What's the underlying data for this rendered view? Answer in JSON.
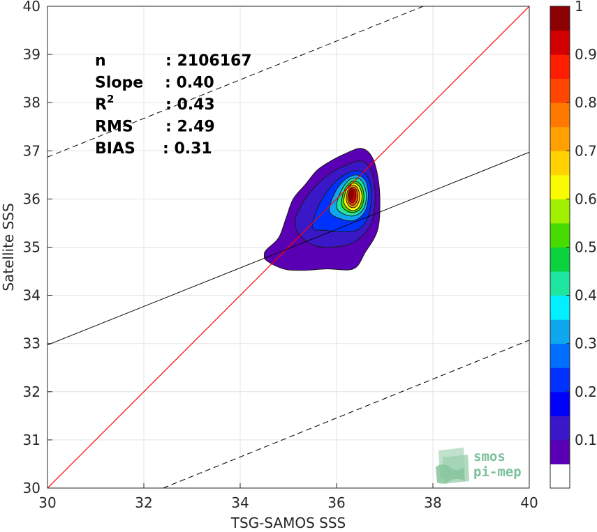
{
  "chart_data": {
    "type": "scatter",
    "subtype": "density-contour",
    "xlabel": "TSG-SAMOS SSS",
    "ylabel": "Satellite SSS",
    "xlim": [
      30,
      40
    ],
    "ylim": [
      30,
      40
    ],
    "x_ticks": [
      "30",
      "32",
      "34",
      "36",
      "38",
      "40"
    ],
    "y_ticks": [
      "30",
      "31",
      "32",
      "33",
      "34",
      "35",
      "36",
      "37",
      "38",
      "39",
      "40"
    ],
    "grid": true,
    "stats": [
      {
        "key": "n",
        "value": ": 2106167"
      },
      {
        "key": "Slope",
        "value": ": 0.40"
      },
      {
        "key": "R",
        "sup": "2",
        "value": ": 0.43"
      },
      {
        "key": "RMS",
        "value": ": 2.49"
      },
      {
        "key": "BIAS",
        "value": ": 0.31"
      }
    ],
    "lines": {
      "identity": {
        "slope": 1,
        "intercept": 0,
        "color": "#ff0000"
      },
      "fit": {
        "slope": 0.4,
        "points": [
          [
            30,
            32.97
          ],
          [
            40,
            36.97
          ]
        ],
        "color": "#000000"
      },
      "upper_bound": {
        "points": [
          [
            30,
            36.87
          ],
          [
            37.8,
            40
          ]
        ],
        "dash": true
      },
      "lower_bound": {
        "points": [
          [
            32.4,
            30
          ],
          [
            40,
            33.07
          ]
        ],
        "dash": true
      }
    },
    "density_peak": {
      "x": 36.3,
      "y": 36.1
    },
    "colorbar": {
      "min": 0,
      "max": 1,
      "tick_labels": [
        "0.1",
        "0.2",
        "0.3",
        "0.4",
        "0.5",
        "0.6",
        "0.7",
        "0.8",
        "0.9",
        "1"
      ],
      "colors": [
        "#ffffff",
        "#5a00b4",
        "#3a18c8",
        "#0000ff",
        "#0032ff",
        "#006eff",
        "#0fa8f0",
        "#00f0ff",
        "#1ee6a0",
        "#0ad23c",
        "#46dc00",
        "#a0f000",
        "#fafa00",
        "#ffd200",
        "#ffa000",
        "#ff7800",
        "#ff4600",
        "#ff1e00",
        "#d20000",
        "#8c0000"
      ]
    },
    "contours": [
      {
        "level": 1,
        "color": "#5a00b4",
        "pts": [
          [
            34.55,
            34.72
          ],
          [
            34.5,
            34.85
          ],
          [
            34.55,
            34.95
          ],
          [
            34.8,
            35.2
          ],
          [
            34.95,
            35.6
          ],
          [
            35.1,
            36.0
          ],
          [
            35.35,
            36.3
          ],
          [
            35.6,
            36.6
          ],
          [
            35.9,
            36.8
          ],
          [
            36.2,
            36.95
          ],
          [
            36.5,
            37.05
          ],
          [
            36.72,
            36.9
          ],
          [
            36.85,
            36.5
          ],
          [
            36.9,
            35.95
          ],
          [
            36.85,
            35.35
          ],
          [
            36.6,
            34.9
          ],
          [
            36.35,
            34.55
          ],
          [
            35.8,
            34.55
          ],
          [
            35.3,
            34.52
          ],
          [
            34.9,
            34.55
          ]
        ]
      },
      {
        "level": 2,
        "color": "#3a18c8",
        "pts": [
          [
            35.2,
            35.3
          ],
          [
            35.15,
            35.6
          ],
          [
            35.35,
            36.0
          ],
          [
            35.6,
            36.3
          ],
          [
            35.9,
            36.55
          ],
          [
            36.25,
            36.72
          ],
          [
            36.55,
            36.78
          ],
          [
            36.75,
            36.5
          ],
          [
            36.8,
            35.95
          ],
          [
            36.7,
            35.45
          ],
          [
            36.35,
            35.1
          ],
          [
            35.9,
            35.0
          ],
          [
            35.5,
            35.05
          ]
        ]
      },
      {
        "level": 3,
        "color": "#0032ff",
        "pts": [
          [
            35.5,
            35.4
          ],
          [
            35.6,
            35.8
          ],
          [
            35.8,
            36.15
          ],
          [
            36.05,
            36.42
          ],
          [
            36.35,
            36.58
          ],
          [
            36.6,
            36.52
          ],
          [
            36.72,
            36.2
          ],
          [
            36.68,
            35.72
          ],
          [
            36.48,
            35.38
          ],
          [
            36.1,
            35.32
          ],
          [
            35.75,
            35.35
          ]
        ]
      },
      {
        "level": 4,
        "color": "#0fa8f0",
        "pts": [
          [
            35.85,
            35.75
          ],
          [
            35.95,
            36.1
          ],
          [
            36.15,
            36.38
          ],
          [
            36.4,
            36.5
          ],
          [
            36.6,
            36.38
          ],
          [
            36.66,
            36.05
          ],
          [
            36.58,
            35.72
          ],
          [
            36.35,
            35.55
          ],
          [
            36.05,
            35.6
          ]
        ]
      },
      {
        "level": 5,
        "color": "#1ee6a0",
        "pts": [
          [
            36.0,
            35.85
          ],
          [
            36.1,
            36.18
          ],
          [
            36.3,
            36.42
          ],
          [
            36.52,
            36.38
          ],
          [
            36.62,
            36.08
          ],
          [
            36.55,
            35.78
          ],
          [
            36.35,
            35.65
          ],
          [
            36.12,
            35.7
          ]
        ]
      },
      {
        "level": 6,
        "color": "#46dc00",
        "pts": [
          [
            36.1,
            35.92
          ],
          [
            36.17,
            36.2
          ],
          [
            36.33,
            36.37
          ],
          [
            36.5,
            36.3
          ],
          [
            36.57,
            36.05
          ],
          [
            36.5,
            35.8
          ],
          [
            36.33,
            35.72
          ],
          [
            36.17,
            35.78
          ]
        ]
      },
      {
        "level": 7,
        "color": "#fafa00",
        "pts": [
          [
            36.15,
            35.97
          ],
          [
            36.22,
            36.22
          ],
          [
            36.34,
            36.33
          ],
          [
            36.47,
            36.26
          ],
          [
            36.53,
            36.04
          ],
          [
            36.46,
            35.82
          ],
          [
            36.32,
            35.76
          ],
          [
            36.2,
            35.84
          ]
        ]
      },
      {
        "level": 8,
        "color": "#ffa000",
        "pts": [
          [
            36.2,
            36.0
          ],
          [
            36.25,
            36.22
          ],
          [
            36.34,
            36.29
          ],
          [
            36.44,
            36.22
          ],
          [
            36.48,
            36.03
          ],
          [
            36.42,
            35.86
          ],
          [
            36.32,
            35.82
          ],
          [
            36.24,
            35.88
          ]
        ]
      },
      {
        "level": 9,
        "color": "#ff4600",
        "pts": [
          [
            36.23,
            36.03
          ],
          [
            36.27,
            36.2
          ],
          [
            36.34,
            36.25
          ],
          [
            36.41,
            36.2
          ],
          [
            36.44,
            36.03
          ],
          [
            36.39,
            35.9
          ],
          [
            36.32,
            35.87
          ],
          [
            36.26,
            35.92
          ]
        ]
      },
      {
        "level": 10,
        "color": "#d20000",
        "pts": [
          [
            36.26,
            36.05
          ],
          [
            36.29,
            36.18
          ],
          [
            36.34,
            36.21
          ],
          [
            36.39,
            36.17
          ],
          [
            36.4,
            36.04
          ],
          [
            36.36,
            35.94
          ],
          [
            36.31,
            35.92
          ],
          [
            36.27,
            35.97
          ]
        ]
      }
    ]
  },
  "logo": {
    "line1": "smos",
    "line2": "pi-mep",
    "colors": {
      "text": "#7dbf9a",
      "graphic": "#9fd1b0"
    }
  }
}
